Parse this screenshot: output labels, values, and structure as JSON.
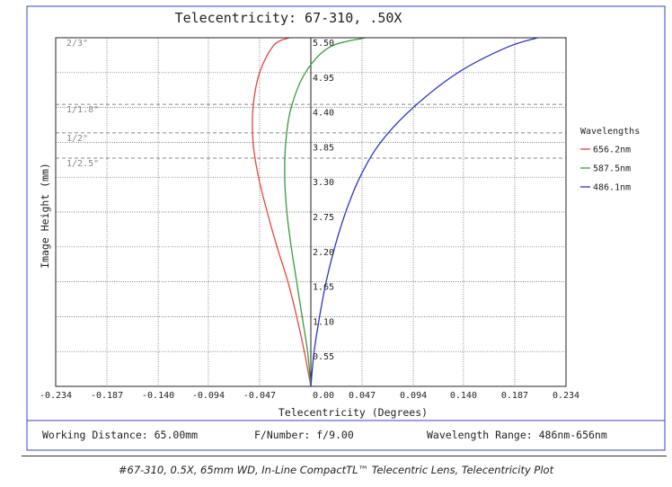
{
  "chart_data": {
    "type": "line",
    "title": "Telecentricity: 67-310, .50X",
    "xlabel": "Telecentricity (Degrees)",
    "ylabel": "Image Height (mm)",
    "xlim": [
      -0.234,
      0.234
    ],
    "ylim": [
      0,
      5.5
    ],
    "x_ticks": [
      "-0.234",
      "-0.187",
      "-0.140",
      "-0.094",
      "-0.047",
      "0.00",
      "0.047",
      "0.094",
      "0.140",
      "0.187",
      "0.234"
    ],
    "x_tick_values": [
      -0.234,
      -0.187,
      -0.14,
      -0.094,
      -0.047,
      0.0,
      0.047,
      0.094,
      0.14,
      0.187,
      0.234
    ],
    "y_ticks": [
      "0.55",
      "1.10",
      "1.65",
      "2.20",
      "2.75",
      "3.30",
      "3.85",
      "4.40",
      "4.95",
      "5.50"
    ],
    "y_tick_values": [
      0.55,
      1.1,
      1.65,
      2.2,
      2.75,
      3.3,
      3.85,
      4.4,
      4.95,
      5.5
    ],
    "grid": true,
    "legend": {
      "title": "Wavelengths",
      "position": "right"
    },
    "sensor_formats": [
      {
        "label": "2/3\"",
        "y": 5.5
      },
      {
        "label": "1/1.8\"",
        "y": 4.45
      },
      {
        "label": "1/2\"",
        "y": 4.0
      },
      {
        "label": "1/2.5\"",
        "y": 3.6
      }
    ],
    "series": [
      {
        "name": "656.2nm",
        "color": "#e8453c",
        "points": [
          [
            0.0,
            0.0
          ],
          [
            -0.006,
            0.55
          ],
          [
            -0.013,
            1.1
          ],
          [
            -0.021,
            1.65
          ],
          [
            -0.031,
            2.2
          ],
          [
            -0.04,
            2.75
          ],
          [
            -0.048,
            3.3
          ],
          [
            -0.053,
            3.85
          ],
          [
            -0.053,
            4.4
          ],
          [
            -0.047,
            4.95
          ],
          [
            -0.034,
            5.38
          ],
          [
            -0.02,
            5.5
          ]
        ]
      },
      {
        "name": "587.5nm",
        "color": "#3a9a3a",
        "points": [
          [
            0.0,
            0.0
          ],
          [
            -0.003,
            0.55
          ],
          [
            -0.008,
            1.1
          ],
          [
            -0.013,
            1.65
          ],
          [
            -0.018,
            2.2
          ],
          [
            -0.022,
            2.75
          ],
          [
            -0.024,
            3.3
          ],
          [
            -0.023,
            3.85
          ],
          [
            -0.018,
            4.4
          ],
          [
            -0.005,
            4.95
          ],
          [
            0.017,
            5.35
          ],
          [
            0.05,
            5.5
          ]
        ]
      },
      {
        "name": "486.1nm",
        "color": "#2b35c8",
        "points": [
          [
            0.0,
            0.0
          ],
          [
            0.003,
            0.55
          ],
          [
            0.008,
            1.1
          ],
          [
            0.014,
            1.65
          ],
          [
            0.022,
            2.2
          ],
          [
            0.032,
            2.75
          ],
          [
            0.045,
            3.3
          ],
          [
            0.064,
            3.85
          ],
          [
            0.094,
            4.4
          ],
          [
            0.135,
            4.95
          ],
          [
            0.18,
            5.35
          ],
          [
            0.208,
            5.5
          ]
        ]
      }
    ]
  },
  "footer": {
    "working_distance": "Working Distance: 65.00mm",
    "f_number": "F/Number: f/9.00",
    "wavelength_range": "Wavelength Range: 486nm-656nm"
  },
  "caption": "#67-310, 0.5X, 65mm WD, In-Line CompactTL™ Telecentric Lens, Telecentricity Plot"
}
